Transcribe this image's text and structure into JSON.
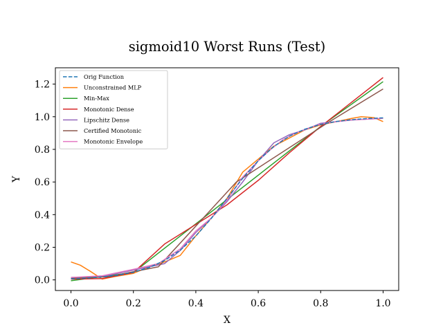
{
  "chart_data": {
    "type": "line",
    "title": "sigmoid10 Worst Runs (Test)",
    "xlabel": "X",
    "ylabel": "Y",
    "xlim": [
      -0.05,
      1.05
    ],
    "ylim": [
      -0.065,
      1.3
    ],
    "xticks": [
      0.0,
      0.2,
      0.4,
      0.6,
      0.8,
      1.0
    ],
    "xtick_labels": [
      "0.0",
      "0.2",
      "0.4",
      "0.6",
      "0.8",
      "1.0"
    ],
    "yticks": [
      0.0,
      0.2,
      0.4,
      0.6,
      0.8,
      1.0,
      1.2
    ],
    "ytick_labels": [
      "0.0",
      "0.2",
      "0.4",
      "0.6",
      "0.8",
      "1.0",
      "1.2"
    ],
    "grid": false,
    "legend_position": "top-left",
    "series": [
      {
        "name": "Orig Function",
        "color": "#1f77b4",
        "dashed": true,
        "x": [
          0.0,
          0.05,
          0.1,
          0.15,
          0.2,
          0.25,
          0.3,
          0.35,
          0.4,
          0.45,
          0.5,
          0.55,
          0.6,
          0.65,
          0.7,
          0.75,
          0.8,
          0.85,
          0.9,
          0.95,
          1.0
        ],
        "y": [
          0.007,
          0.011,
          0.018,
          0.029,
          0.047,
          0.076,
          0.119,
          0.182,
          0.269,
          0.378,
          0.5,
          0.622,
          0.731,
          0.818,
          0.881,
          0.924,
          0.953,
          0.971,
          0.982,
          0.989,
          0.993
        ]
      },
      {
        "name": "Unconstrained MLP",
        "color": "#ff7f0e",
        "dashed": false,
        "x": [
          0.0,
          0.03,
          0.06,
          0.1,
          0.14,
          0.2,
          0.25,
          0.3,
          0.35,
          0.4,
          0.45,
          0.5,
          0.55,
          0.6,
          0.65,
          0.7,
          0.75,
          0.8,
          0.85,
          0.9,
          0.93,
          0.97,
          1.0
        ],
        "y": [
          0.11,
          0.09,
          0.055,
          0.005,
          0.02,
          0.04,
          0.08,
          0.11,
          0.15,
          0.27,
          0.38,
          0.5,
          0.66,
          0.74,
          0.82,
          0.87,
          0.92,
          0.95,
          0.97,
          0.99,
          1.0,
          0.995,
          0.97
        ]
      },
      {
        "name": "Min-Max",
        "color": "#2ca02c",
        "dashed": false,
        "x": [
          0.0,
          0.2,
          0.81,
          1.0
        ],
        "y": [
          -0.005,
          0.045,
          0.955,
          1.215
        ]
      },
      {
        "name": "Monotonic Dense",
        "color": "#d62728",
        "dashed": false,
        "x": [
          0.0,
          0.1,
          0.2,
          0.3,
          0.4,
          0.5,
          0.6,
          0.7,
          0.8,
          0.9,
          1.0
        ],
        "y": [
          0.005,
          0.008,
          0.045,
          0.22,
          0.34,
          0.46,
          0.61,
          0.78,
          0.94,
          1.09,
          1.24
        ]
      },
      {
        "name": "Lipschitz Dense",
        "color": "#9467bd",
        "dashed": false,
        "x": [
          0.0,
          0.1,
          0.2,
          0.3,
          0.35,
          0.4,
          0.45,
          0.5,
          0.55,
          0.6,
          0.65,
          0.7,
          0.75,
          0.8,
          0.85,
          0.9,
          0.95,
          1.0
        ],
        "y": [
          0.015,
          0.02,
          0.06,
          0.1,
          0.18,
          0.29,
          0.38,
          0.48,
          0.6,
          0.73,
          0.84,
          0.89,
          0.92,
          0.96,
          0.97,
          0.98,
          0.985,
          0.99
        ]
      },
      {
        "name": "Certified Monotonic",
        "color": "#8c564b",
        "dashed": false,
        "x": [
          0.0,
          0.12,
          0.28,
          0.53,
          0.82,
          1.0
        ],
        "y": [
          0.01,
          0.02,
          0.08,
          0.6,
          0.96,
          1.17
        ]
      },
      {
        "name": "Monotonic Envelope",
        "color": "#e377c2",
        "dashed": false,
        "x": [
          0.0,
          0.1,
          0.2,
          0.28,
          0.35,
          0.4,
          0.45,
          0.5,
          0.55,
          0.6,
          0.64,
          0.68,
          0.72,
          0.76,
          0.8,
          0.85,
          0.9,
          0.95,
          1.0
        ],
        "y": [
          0.015,
          0.025,
          0.065,
          0.1,
          0.19,
          0.3,
          0.38,
          0.49,
          0.63,
          0.73,
          0.8,
          0.86,
          0.9,
          0.93,
          0.955,
          0.97,
          0.98,
          0.985,
          0.99
        ]
      }
    ]
  }
}
